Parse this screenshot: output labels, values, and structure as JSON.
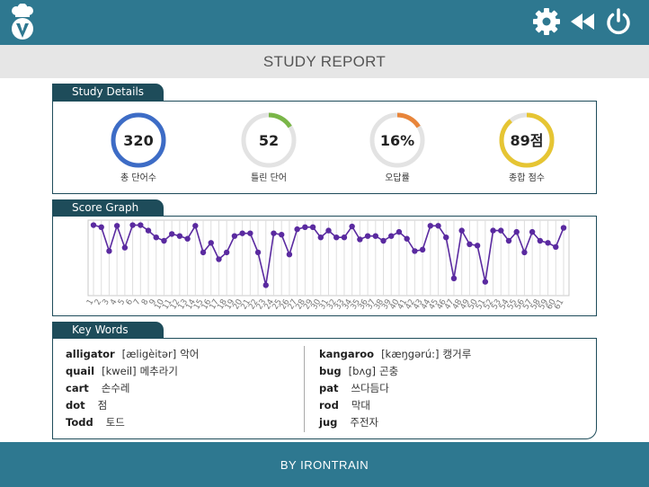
{
  "header": {
    "logo_icon": "chef-avatar-logo",
    "icons": [
      "gear-icon",
      "rewind-icon",
      "power-icon"
    ],
    "bar_color": "#2e7890"
  },
  "page_title": "STUDY REPORT",
  "sections": {
    "details_tab": "Study Details",
    "graph_tab": "Score Graph",
    "keywords_tab": "Key Words"
  },
  "stats": [
    {
      "value": "320",
      "label": "총 단어수",
      "fraction": 1.0,
      "color": "#3d6cc6"
    },
    {
      "value": "52",
      "label": "틀린 단어",
      "fraction": 0.16,
      "color": "#7ab648"
    },
    {
      "value": "16%",
      "label": "오답률",
      "fraction": 0.16,
      "color": "#e8853a"
    },
    {
      "value": "89점",
      "label": "종합 점수",
      "fraction": 0.89,
      "color": "#e6c533"
    }
  ],
  "chart_data": {
    "type": "line",
    "color": "#5a2aa0",
    "grid": true,
    "ylim": [
      0,
      100
    ],
    "x": [
      1,
      2,
      3,
      4,
      5,
      6,
      7,
      8,
      9,
      10,
      11,
      12,
      13,
      14,
      15,
      16,
      17,
      18,
      19,
      20,
      21,
      22,
      23,
      24,
      25,
      26,
      27,
      28,
      29,
      30,
      31,
      32,
      33,
      34,
      35,
      36,
      37,
      38,
      39,
      40,
      41,
      42,
      43,
      44,
      45,
      46,
      47,
      48,
      49,
      50,
      51,
      52,
      53,
      54,
      55,
      56,
      57,
      58,
      59,
      60,
      61
    ],
    "values": [
      98,
      95,
      60,
      97,
      65,
      98,
      98,
      90,
      80,
      75,
      85,
      82,
      78,
      97,
      58,
      72,
      48,
      58,
      82,
      86,
      86,
      58,
      10,
      86,
      84,
      55,
      92,
      95,
      95,
      80,
      90,
      80,
      80,
      96,
      77,
      82,
      82,
      75,
      82,
      88,
      78,
      60,
      62,
      97,
      97,
      80,
      20,
      90,
      70,
      68,
      15,
      90,
      90,
      75,
      88,
      58,
      88,
      75,
      72,
      66,
      94
    ],
    "tick_labels": [
      "1",
      "2",
      "3",
      "4",
      "5",
      "6",
      "7",
      "8",
      "9",
      "10",
      "11",
      "12",
      "13",
      "14",
      "15",
      "16",
      "17",
      "18",
      "19",
      "20",
      "21",
      "22",
      "23",
      "24",
      "25",
      "26",
      "27",
      "28",
      "29",
      "30",
      "31",
      "32",
      "33",
      "34",
      "35",
      "36",
      "37",
      "38",
      "39",
      "40",
      "41",
      "42",
      "43",
      "44",
      "45",
      "46",
      "47",
      "48",
      "49",
      "50",
      "51",
      "52",
      "53",
      "54",
      "55",
      "56",
      "57",
      "58",
      "59",
      "60",
      "61"
    ]
  },
  "keywords": {
    "left": [
      {
        "word": "alligator",
        "pron": "[æligèitər]",
        "meaning": "악어"
      },
      {
        "word": "quail",
        "pron": "[kweil]",
        "meaning": "메추라기"
      },
      {
        "word": "cart",
        "pron": "",
        "meaning": "손수레"
      },
      {
        "word": "dot",
        "pron": "",
        "meaning": "점"
      },
      {
        "word": "Todd",
        "pron": "",
        "meaning": "토드"
      }
    ],
    "right": [
      {
        "word": "kangaroo",
        "pron": "[kæŋgərú:]",
        "meaning": "캥거루"
      },
      {
        "word": "bug",
        "pron": "[bʌg]",
        "meaning": "곤충"
      },
      {
        "word": "pat",
        "pron": "",
        "meaning": "쓰다듬다"
      },
      {
        "word": "rod",
        "pron": "",
        "meaning": "막대"
      },
      {
        "word": "jug",
        "pron": "",
        "meaning": "주전자"
      }
    ]
  },
  "footer": {
    "text": "BY IRONTRAIN"
  }
}
